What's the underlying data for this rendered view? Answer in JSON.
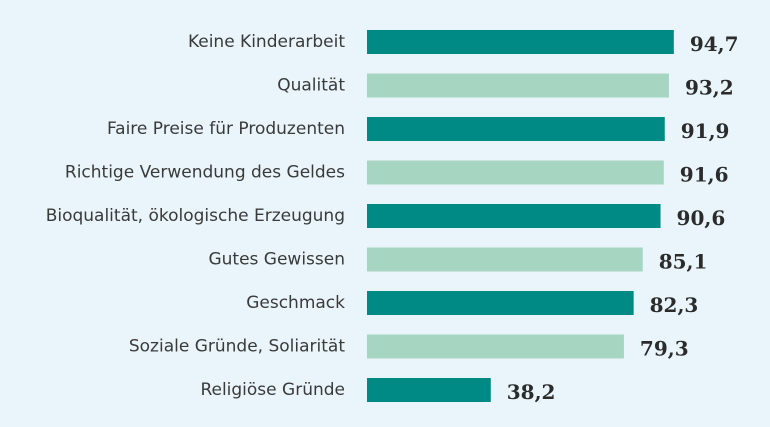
{
  "chart_data": {
    "type": "bar",
    "orientation": "horizontal",
    "title": "",
    "xlabel": "",
    "ylabel": "",
    "categories": [
      "Keine Kinderarbeit",
      "Qualität",
      "Faire Preise für Produzenten",
      "Richtige Verwendung des Geldes",
      "Bioqualität, ökologische Erzeugung",
      "Gutes Gewissen",
      "Geschmack",
      "Soziale Gründe, Soliarität",
      "Religiöse Gründe"
    ],
    "values": [
      94.7,
      93.2,
      91.9,
      91.6,
      90.6,
      85.1,
      82.3,
      79.3,
      38.2
    ],
    "value_labels": [
      "94,7",
      "93,2",
      "91,9",
      "91,6",
      "90,6",
      "85,1",
      "82,3",
      "79,3",
      "38,2"
    ],
    "xlim": [
      0,
      100
    ],
    "grid": false,
    "legend": "none",
    "colors": [
      "#008a85",
      "#a6d6c2"
    ]
  }
}
